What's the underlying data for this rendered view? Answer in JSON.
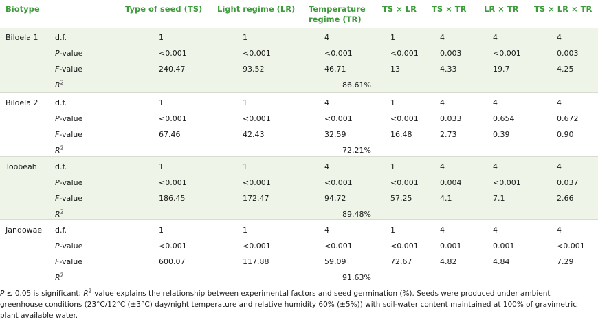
{
  "columns": [
    "Biotype",
    "Type of seed (TS)",
    "Light regime (LR)",
    "Temperature regime (TR)",
    "TS × LR",
    "TS × TR",
    "LR × TR",
    "TS × LR × TR"
  ],
  "groups": [
    {
      "biotype": "Biloela 1",
      "df": [
        "1",
        "1",
        "4",
        "1",
        "4",
        "4",
        "4"
      ],
      "pvalue": [
        "<0.001",
        "<0.001",
        "<0.001",
        "<0.001",
        "0.003",
        "<0.001",
        "0.003"
      ],
      "fvalue": [
        "240.47",
        "93.52",
        "46.71",
        "13",
        "4.33",
        "19.7",
        "4.25"
      ],
      "r2": "86.61%"
    },
    {
      "biotype": "Biloela 2",
      "df": [
        "1",
        "1",
        "4",
        "1",
        "4",
        "4",
        "4"
      ],
      "pvalue": [
        "<0.001",
        "<0.001",
        "<0.001",
        "<0.001",
        "0.033",
        "0.654",
        "0.672"
      ],
      "fvalue": [
        "67.46",
        "42.43",
        "32.59",
        "16.48",
        "2.73",
        "0.39",
        "0.90"
      ],
      "r2": "72.21%"
    },
    {
      "biotype": "Toobeah",
      "df": [
        "1",
        "1",
        "4",
        "1",
        "4",
        "4",
        "4"
      ],
      "pvalue": [
        "<0.001",
        "<0.001",
        "<0.001",
        "<0.001",
        "0.004",
        "<0.001",
        "0.037"
      ],
      "fvalue": [
        "186.45",
        "172.47",
        "94.72",
        "57.25",
        "4.1",
        "7.1",
        "2.66"
      ],
      "r2": "89.48%"
    },
    {
      "biotype": "Jandowae",
      "df": [
        "1",
        "1",
        "4",
        "1",
        "4",
        "4",
        "4"
      ],
      "pvalue": [
        "<0.001",
        "<0.001",
        "<0.001",
        "<0.001",
        "0.001",
        "0.001",
        "<0.001"
      ],
      "fvalue": [
        "600.07",
        "117.88",
        "59.09",
        "72.67",
        "4.82",
        "4.84",
        "7.29"
      ],
      "r2": "91.63%"
    }
  ],
  "labels": {
    "df": "d.f.",
    "p_italic": "P",
    "p_rest": "-value",
    "f_italic": "F",
    "f_rest": "-value",
    "r_italic": "R",
    "r_sup": "2"
  },
  "footnote": {
    "p_italic": "P",
    "part1": " ≤ 0.05 is significant; ",
    "r_italic": "R",
    "r_sup": "2",
    "part2": " value explains the relationship between experimental factors and seed germination (%). Seeds were produced under ambient greenhouse conditions (23°C/12°C (±3°C) day/night temperature and relative humidity 60% (±5%)) with soil-water content maintained at 100% of gravimetric plant available water."
  },
  "colors": {
    "header_text": "#3e9a3c",
    "shade": "#eef5e8"
  }
}
